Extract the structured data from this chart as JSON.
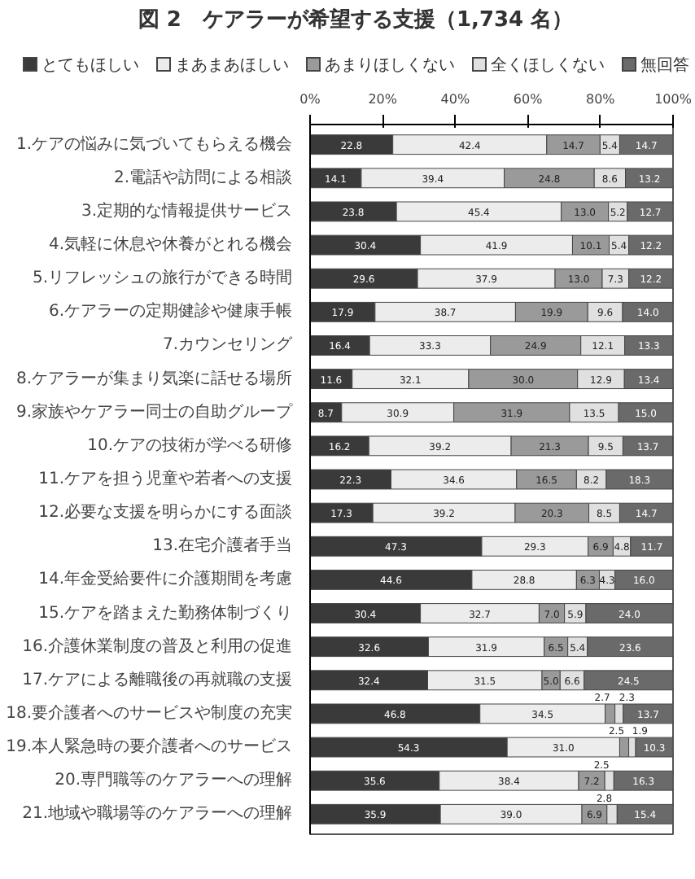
{
  "chart_data": {
    "type": "bar",
    "orientation": "horizontal",
    "stacked": true,
    "title": "図 2　ケアラーが希望する支援（1,734 名）",
    "categories": [
      "1.ケアの悩みに気づいてもらえる機会",
      "2.電話や訪問による相談",
      "3.定期的な情報提供サービス",
      "4.気軽に休息や休養がとれる機会",
      "5.リフレッシュの旅行ができる時間",
      "6.ケアラーの定期健診や健康手帳",
      "7.カウンセリング",
      "8.ケアラーが集まり気楽に話せる場所",
      "9.家族やケアラー同士の自助グループ",
      "10.ケアの技術が学べる研修",
      "11.ケアを担う児童や若者への支援",
      "12.必要な支援を明らかにする面談",
      "13.在宅介護者手当",
      "14.年金受給要件に介護期間を考慮",
      "15.ケアを踏まえた勤務体制づくり",
      "16.介護休業制度の普及と利用の促進",
      "17.ケアによる離職後の再就職の支援",
      "18.要介護者へのサービスや制度の充実",
      "19.本人緊急時の要介護者へのサービス",
      "20.専門職等のケアラーへの理解",
      "21.地域や職場等のケアラーへの理解"
    ],
    "series": [
      {
        "name": "とてもほしい",
        "color": "#3a3a3a",
        "values": [
          22.8,
          14.1,
          23.8,
          30.4,
          29.6,
          17.9,
          16.4,
          11.6,
          8.7,
          16.2,
          22.3,
          17.3,
          47.3,
          44.6,
          30.4,
          32.6,
          32.4,
          46.8,
          54.3,
          35.6,
          35.9
        ],
        "value_labels": [
          "22.8",
          "14.1",
          "23.8",
          "30.4",
          "29.6",
          "17.9",
          "16.4",
          "11.6",
          "8.7",
          "16.2",
          "22.3",
          "17.3",
          "47.3",
          "44.6",
          "30.4",
          "32.6",
          "32.4",
          "46.8",
          "54.3",
          "35.6",
          "35.9"
        ]
      },
      {
        "name": "まあまあほしい",
        "color": "#ececec",
        "values": [
          42.4,
          39.4,
          45.4,
          41.9,
          37.9,
          38.7,
          33.3,
          32.1,
          30.9,
          39.2,
          34.6,
          39.2,
          29.3,
          28.8,
          32.7,
          31.9,
          31.5,
          34.5,
          31.0,
          38.4,
          39.0
        ],
        "value_labels": [
          "42.4",
          "39.4",
          "45.4",
          "41.9",
          "37.9",
          "38.7",
          "33.3",
          "32.1",
          "30.9",
          "39.2",
          "34.6",
          "39.2",
          "29.3",
          "28.8",
          "32.7",
          "31.9",
          "31.5",
          "34.5",
          "31.0",
          "38.4",
          "39.0"
        ]
      },
      {
        "name": "あまりほしくない",
        "color": "#9a9a9a",
        "values": [
          14.7,
          24.8,
          13.0,
          10.1,
          13.0,
          19.9,
          24.9,
          30.0,
          31.9,
          21.3,
          16.5,
          20.3,
          6.9,
          6.3,
          7.0,
          6.5,
          5.0,
          2.7,
          2.5,
          7.2,
          6.9
        ],
        "value_labels": [
          "14.7",
          "24.8",
          "13.0",
          "10.1",
          "13.0",
          "19.9",
          "24.9",
          "30.0",
          "31.9",
          "21.3",
          "16.5",
          "20.3",
          "6.9",
          "6.3",
          "7.0",
          "6.5",
          "5.0",
          "2.7",
          "2.5",
          "7.2",
          "6.9"
        ]
      },
      {
        "name": "全くほしくない",
        "color": "#e0e0e0",
        "values": [
          5.4,
          8.6,
          5.2,
          5.4,
          7.3,
          9.6,
          12.1,
          12.9,
          13.5,
          9.5,
          8.2,
          8.5,
          4.8,
          4.3,
          5.9,
          5.4,
          6.6,
          2.3,
          1.9,
          2.5,
          2.8
        ],
        "value_labels": [
          "5.4",
          "8.6",
          "5.2",
          "5.4",
          "7.3",
          "9.6",
          "12.1",
          "12.9",
          "13.5",
          "9.5",
          "8.2",
          "8.5",
          "4.8",
          "4.3",
          "5.9",
          "5.4",
          "6.6",
          "2.3",
          "1.9",
          "2.5",
          "2.8"
        ]
      },
      {
        "name": "無回答",
        "color": "#6a6a6a",
        "values": [
          14.7,
          13.2,
          12.7,
          12.2,
          12.2,
          14.0,
          13.3,
          13.4,
          15.0,
          13.7,
          18.3,
          14.7,
          11.7,
          16.0,
          24.0,
          23.6,
          24.5,
          13.7,
          10.3,
          16.3,
          15.4
        ],
        "value_labels": [
          "14.7",
          "13.2",
          "12.7",
          "12.2",
          "12.2",
          "14.0",
          "13.3",
          "13.4",
          "15.0",
          "13.7",
          "18.3",
          "14.7",
          "11.7",
          "16.0",
          "24.0",
          "23.6",
          "24.5",
          "13.7",
          "10.3",
          "16.3",
          "15.4"
        ]
      }
    ],
    "xlim": [
      0,
      100
    ],
    "xticks": [
      {
        "value": 0,
        "label": "0%"
      },
      {
        "value": 20,
        "label": "20%"
      },
      {
        "value": 40,
        "label": "40%"
      },
      {
        "value": 60,
        "label": "60%"
      },
      {
        "value": 80,
        "label": "80%"
      },
      {
        "value": 100,
        "label": "100%"
      }
    ],
    "legend": "top"
  }
}
